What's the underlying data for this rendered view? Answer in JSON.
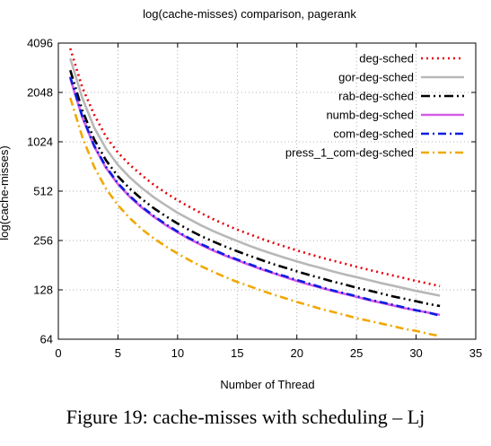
{
  "caption": "Figure 19: cache-misses with scheduling – Lj",
  "chart_data": {
    "type": "line",
    "title": "log(cache-misses) comparison, pagerank",
    "xlabel": "Number of Thread",
    "ylabel": "log(cache-misses)",
    "xlim": [
      0,
      35
    ],
    "ylim": [
      64,
      4096
    ],
    "yscale": "log2",
    "x_ticks": [
      0,
      5,
      10,
      15,
      20,
      25,
      30,
      35
    ],
    "y_ticks": [
      64,
      128,
      256,
      512,
      1024,
      2048,
      4096
    ],
    "grid": true,
    "legend_position": "top-right",
    "x": [
      1,
      2,
      3,
      4,
      5,
      6,
      7,
      8,
      9,
      10,
      11,
      12,
      13,
      14,
      15,
      16,
      17,
      18,
      19,
      20,
      21,
      22,
      23,
      24,
      25,
      26,
      27,
      28,
      29,
      30,
      31,
      32
    ],
    "series": [
      {
        "name": "deg-sched",
        "color": "#e8000b",
        "dash": "2,4",
        "values": [
          3800,
          2200,
          1500,
          1100,
          880,
          740,
          640,
          560,
          500,
          450,
          410,
          375,
          345,
          320,
          298,
          280,
          263,
          248,
          235,
          223,
          212,
          202,
          193,
          185,
          177,
          170,
          163,
          157,
          151,
          145,
          140,
          135
        ]
      },
      {
        "name": "gor-deg-sched",
        "color": "#b8b8b8",
        "dash": "",
        "values": [
          3300,
          1900,
          1250,
          930,
          740,
          620,
          535,
          470,
          420,
          378,
          345,
          316,
          292,
          272,
          254,
          238,
          224,
          212,
          201,
          191,
          182,
          174,
          166,
          159,
          153,
          147,
          141,
          136,
          131,
          126,
          122,
          118
        ]
      },
      {
        "name": "rab-deg-sched",
        "color": "#000000",
        "dash": "10,4,2,4,2,4",
        "values": [
          2800,
          1600,
          1060,
          790,
          630,
          530,
          458,
          403,
          360,
          325,
          296,
          272,
          252,
          235,
          220,
          207,
          195,
          184,
          175,
          166,
          158,
          151,
          144,
          138,
          132,
          127,
          122,
          117,
          113,
          109,
          105,
          102
        ]
      },
      {
        "name": "numb-deg-sched",
        "color": "#d65ce8",
        "dash": "",
        "values": [
          2500,
          1450,
          960,
          710,
          565,
          472,
          406,
          357,
          318,
          287,
          261,
          240,
          222,
          207,
          194,
          182,
          171,
          162,
          153,
          145,
          138,
          132,
          126,
          121,
          116,
          111,
          107,
          103,
          99,
          96,
          93,
          90
        ]
      },
      {
        "name": "com-deg-sched",
        "color": "#0b1ee0",
        "dash": "9,4,2,4",
        "values": [
          2550,
          1470,
          970,
          720,
          572,
          478,
          411,
          361,
          322,
          290,
          264,
          243,
          225,
          209,
          196,
          184,
          173,
          163,
          155,
          147,
          140,
          133,
          127,
          122,
          117,
          112,
          108,
          104,
          100,
          96,
          93,
          89
        ]
      },
      {
        "name": "press_1_com-deg-sched",
        "color": "#f0a800",
        "dash": "9,4,2,4",
        "values": [
          1900,
          1100,
          720,
          530,
          420,
          350,
          300,
          264,
          236,
          213,
          194,
          178,
          165,
          153,
          143,
          135,
          127,
          120,
          114,
          108,
          103,
          98,
          94,
          90,
          86,
          83,
          80,
          77,
          74,
          72,
          69,
          67
        ]
      }
    ]
  }
}
